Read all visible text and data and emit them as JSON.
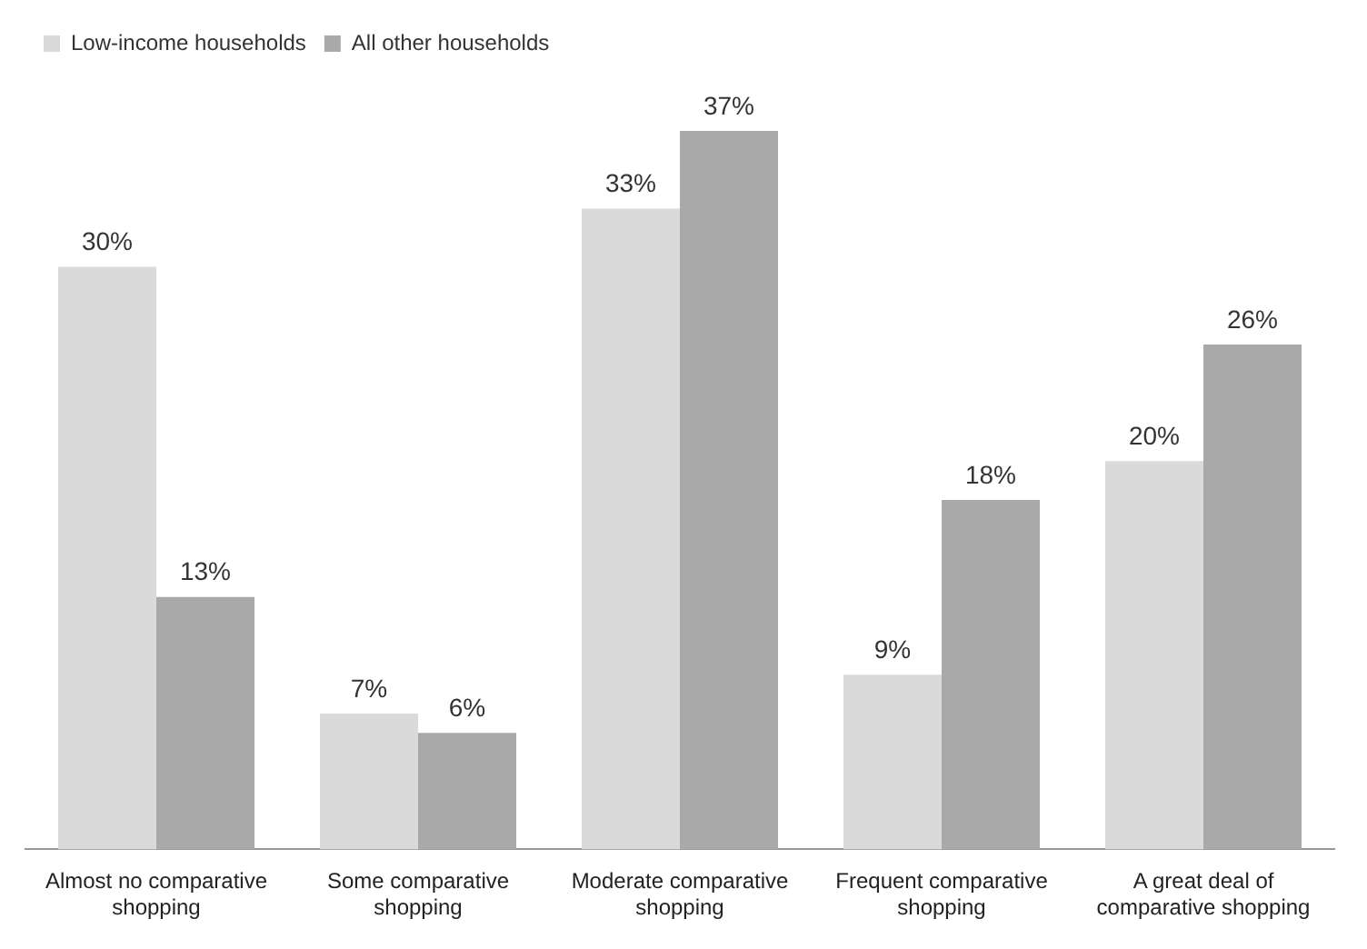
{
  "chart_data": {
    "type": "bar",
    "categories": [
      "Almost no comparative shopping",
      "Some comparative shopping",
      "Moderate comparative shopping",
      "Frequent comparative shopping",
      "A great deal of comparative shopping"
    ],
    "series": [
      {
        "name": "Low-income households",
        "color": "#dadada",
        "values": [
          30,
          7,
          33,
          9,
          20
        ],
        "value_labels": [
          "30%",
          "7%",
          "33%",
          "9%",
          "20%"
        ]
      },
      {
        "name": "All other households",
        "color": "#a9a9a9",
        "values": [
          13,
          6,
          37,
          18,
          26
        ],
        "value_labels": [
          "13%",
          "6%",
          "37%",
          "18%",
          "26%"
        ]
      }
    ],
    "tick_labels": "x",
    "grid": false,
    "legend": "top left"
  }
}
